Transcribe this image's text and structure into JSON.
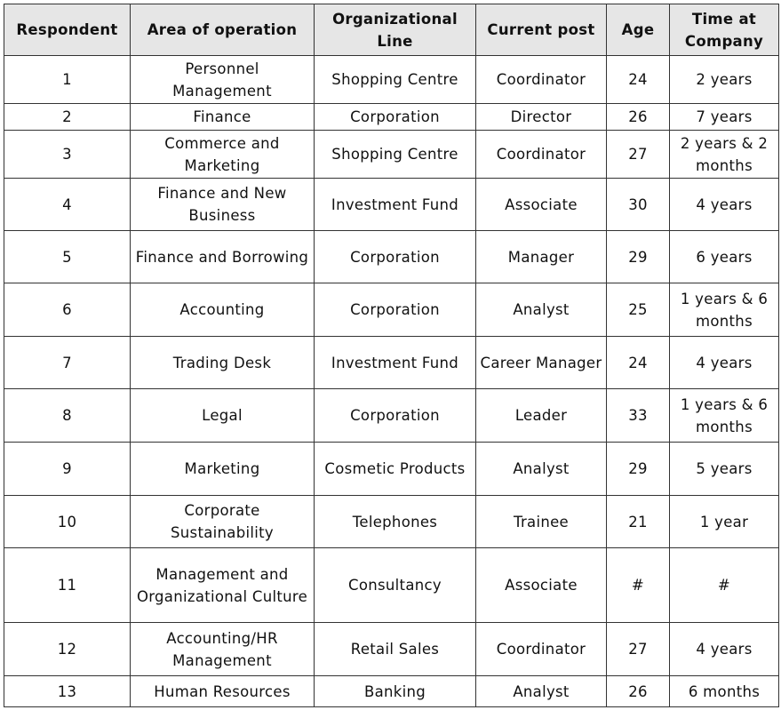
{
  "table": {
    "header": [
      "Respondent",
      "Area of operation",
      "Organizational Line",
      "Current post",
      "Age",
      "Time at Company"
    ],
    "rows": [
      [
        1,
        "Personnel Management",
        "Shopping Centre",
        "Coordinator",
        24,
        "2 years"
      ],
      [
        2,
        "Finance",
        "Corporation",
        "Director",
        26,
        "7 years"
      ],
      [
        3,
        "Commerce and Marketing",
        "Shopping Centre",
        "Coordinator",
        27,
        "2 years & 2 months"
      ],
      [
        4,
        "Finance and New Business",
        "Investment Fund",
        "Associate",
        30,
        "4 years"
      ],
      [
        5,
        "Finance and Borrowing",
        "Corporation",
        "Manager",
        29,
        "6 years"
      ],
      [
        6,
        "Accounting",
        "Corporation",
        "Analyst",
        25,
        "1 years & 6 months"
      ],
      [
        7,
        "Trading Desk",
        "Investment Fund",
        "Career Manager",
        24,
        "4 years"
      ],
      [
        8,
        "Legal",
        "Corporation",
        "Leader",
        33,
        "1 years & 6 months"
      ],
      [
        9,
        "Marketing",
        "Cosmetic Products",
        "Analyst",
        29,
        "5 years"
      ],
      [
        10,
        "Corporate Sustainability",
        "Telephones",
        "Trainee",
        21,
        "1 year"
      ],
      [
        11,
        "Management and Organizational Culture",
        "Consultancy",
        "Associate",
        "#",
        "#"
      ],
      [
        12,
        "Accounting/HR Management",
        "Retail Sales",
        "Coordinator",
        27,
        "4 years"
      ],
      [
        13,
        "Human Resources",
        "Banking",
        "Analyst",
        26,
        "6 months"
      ]
    ]
  }
}
